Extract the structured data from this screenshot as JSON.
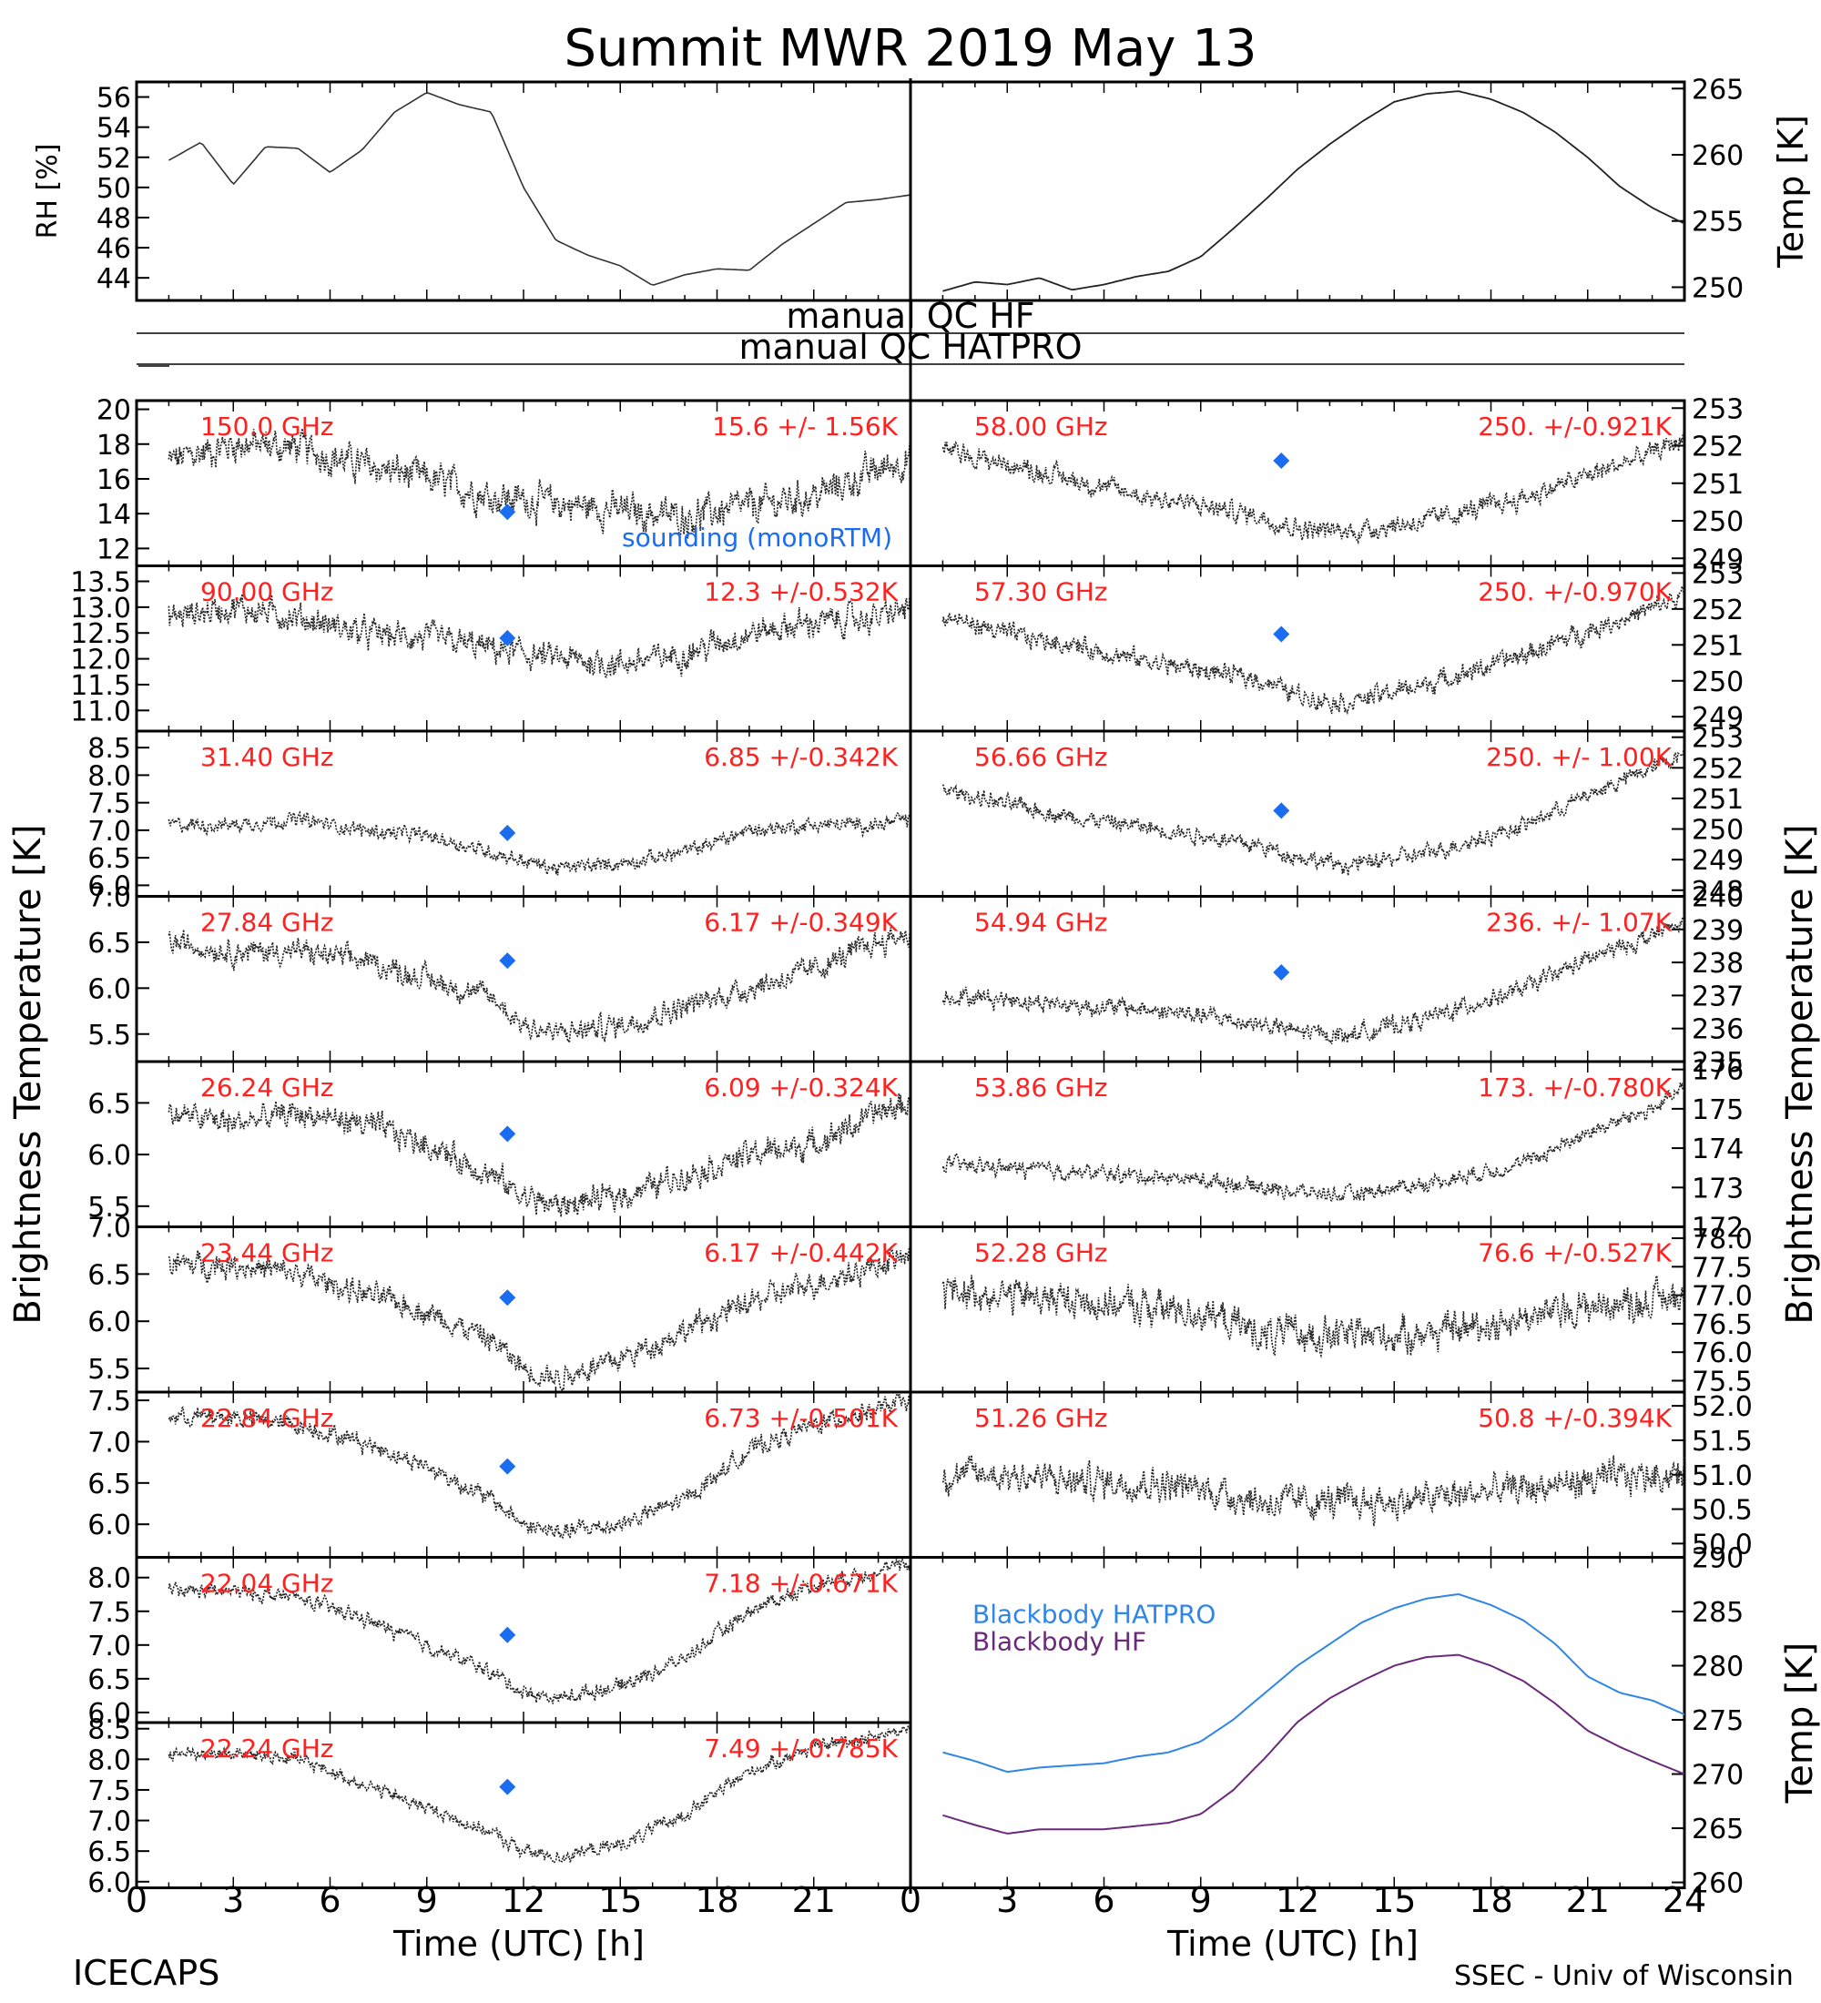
{
  "title": "Summit MWR 2019 May 13",
  "footer": {
    "left": "ICECAPS",
    "right": "SSEC - Univ of Wisconsin"
  },
  "x_axis": {
    "label": "Time (UTC) [h]",
    "ticks": [
      "0",
      "3",
      "6",
      "9",
      "12",
      "15",
      "18",
      "21",
      "24"
    ],
    "range": [
      0,
      24
    ]
  },
  "brightness_label": "Brightness Temperature [K]",
  "qc": {
    "line1": "manual QC HF",
    "line2": "manual QC HATPRO"
  },
  "sounding_label": "sounding (monoRTM)",
  "colors": {
    "sounding": "#1a6cf0",
    "red_text": "#ff2020",
    "hatpro": "#2f86e6",
    "hf": "#6a2a7a"
  },
  "chart_data": [
    {
      "id": "rh",
      "type": "line",
      "ylabel": "RH [%]",
      "ylim": [
        42.5,
        57
      ],
      "yticks": [
        "44",
        "46",
        "48",
        "50",
        "52",
        "54",
        "56"
      ],
      "x": [
        1,
        2,
        3,
        4,
        5,
        6,
        7,
        8,
        9,
        10,
        11,
        12,
        13,
        14,
        15,
        16,
        17,
        18,
        19,
        20,
        21,
        22,
        23,
        24
      ],
      "values": [
        51.8,
        53,
        50.2,
        52.7,
        52.6,
        51,
        52.5,
        55,
        56.3,
        55.5,
        55,
        50,
        46.5,
        45.5,
        44.8,
        43.5,
        44.2,
        44.6,
        44.5,
        46.2,
        47.6,
        49,
        49.2,
        49.5
      ]
    },
    {
      "id": "temp",
      "type": "line",
      "ylabel": "Temp [K]",
      "ylim": [
        249,
        265.5
      ],
      "yticks": [
        "250",
        "255",
        "260",
        "265"
      ],
      "x": [
        1,
        2,
        3,
        4,
        5,
        6,
        7,
        8,
        9,
        10,
        11,
        12,
        13,
        14,
        15,
        16,
        17,
        18,
        19,
        20,
        21,
        22,
        23,
        24
      ],
      "values": [
        249.7,
        250.4,
        250.2,
        250.7,
        249.8,
        250.2,
        250.8,
        251.2,
        252.3,
        254.4,
        256.6,
        258.9,
        260.8,
        262.5,
        264,
        264.6,
        264.8,
        264.2,
        263.2,
        261.7,
        259.8,
        257.6,
        256,
        254.8
      ]
    },
    {
      "id": "ch150",
      "side": "left",
      "label": "150.0 GHz",
      "stat": "15.6 +/- 1.56K",
      "ylim": [
        11,
        20.5
      ],
      "yticks": [
        "12",
        "14",
        "16",
        "18",
        "20"
      ],
      "sounding": {
        "x": 11.5,
        "y": 14.1
      },
      "x": [
        1,
        3,
        5,
        7,
        9,
        11,
        13,
        15,
        17,
        19,
        21,
        23,
        24
      ],
      "values": [
        17,
        18,
        17.8,
        16.8,
        16,
        15,
        14.6,
        14.2,
        13.8,
        14.4,
        15,
        16.5,
        17.2
      ],
      "noise": 0.9
    },
    {
      "id": "ch58",
      "side": "right",
      "label": "58.00 GHz",
      "stat": "250. +/-0.921K",
      "ylim": [
        248.8,
        253.2
      ],
      "yticks": [
        "249",
        "250",
        "251",
        "252",
        "253"
      ],
      "sounding": {
        "x": 11.5,
        "y": 251.6
      },
      "x": [
        1,
        3,
        5,
        7,
        9,
        11,
        12,
        13.5,
        16,
        19,
        21,
        23,
        24
      ],
      "values": [
        251.9,
        251.5,
        251.1,
        250.7,
        250.4,
        250.1,
        249.8,
        249.7,
        250,
        250.6,
        251.2,
        251.8,
        252.2
      ],
      "noise": 0.25
    },
    {
      "id": "ch90",
      "side": "left",
      "label": "90.00 GHz",
      "stat": "12.3 +/-0.532K",
      "ylim": [
        10.6,
        13.8
      ],
      "yticks": [
        "11.0",
        "11.5",
        "12.0",
        "12.5",
        "13.0",
        "13.5"
      ],
      "sounding": {
        "x": 11.5,
        "y": 12.4
      },
      "x": [
        1,
        3,
        5,
        7,
        9,
        11,
        13,
        15,
        17,
        19,
        21,
        23,
        24
      ],
      "values": [
        12.8,
        13,
        12.8,
        12.5,
        12.4,
        12.2,
        12,
        11.9,
        12.1,
        12.5,
        12.7,
        12.8,
        13
      ],
      "noise": 0.25
    },
    {
      "id": "ch57",
      "side": "right",
      "label": "57.30 GHz",
      "stat": "250. +/-0.970K",
      "ylim": [
        248.6,
        253.2
      ],
      "yticks": [
        "249",
        "250",
        "251",
        "252",
        "253"
      ],
      "sounding": {
        "x": 11.5,
        "y": 251.3
      },
      "x": [
        1,
        3,
        5,
        7,
        9,
        11,
        12,
        13.5,
        16,
        19,
        21,
        23,
        24
      ],
      "values": [
        251.8,
        251.3,
        251,
        250.6,
        250.3,
        250,
        249.6,
        249.4,
        249.9,
        250.7,
        251.4,
        252,
        252.4
      ],
      "noise": 0.25
    },
    {
      "id": "ch31",
      "side": "left",
      "label": "31.40 GHz",
      "stat": "6.85 +/-0.342K",
      "ylim": [
        5.8,
        8.8
      ],
      "yticks": [
        "6.0",
        "6.5",
        "7.0",
        "7.5",
        "8.0",
        "8.5"
      ],
      "sounding": {
        "x": 11.5,
        "y": 6.95
      },
      "x": [
        1,
        3,
        5,
        7,
        9,
        11,
        13,
        15,
        17,
        19,
        21,
        23,
        24
      ],
      "values": [
        7.1,
        7.1,
        7.2,
        7,
        6.9,
        6.6,
        6.3,
        6.4,
        6.6,
        7,
        7.1,
        7.1,
        7.2
      ],
      "noise": 0.12
    },
    {
      "id": "ch56",
      "side": "right",
      "label": "56.66 GHz",
      "stat": "250. +/- 1.00K",
      "ylim": [
        247.8,
        253.2
      ],
      "yticks": [
        "248",
        "249",
        "250",
        "251",
        "252",
        "253"
      ],
      "sounding": {
        "x": 11.5,
        "y": 250.6
      },
      "x": [
        1,
        3,
        5,
        7,
        9,
        11,
        12,
        13.5,
        16,
        19,
        21,
        23,
        24
      ],
      "values": [
        251.3,
        250.8,
        250.4,
        250.1,
        249.8,
        249.4,
        249.1,
        248.8,
        249.2,
        250.1,
        251.1,
        252,
        252.5
      ],
      "noise": 0.25
    },
    {
      "id": "ch27",
      "side": "left",
      "label": "27.84 GHz",
      "stat": "6.17 +/-0.349K",
      "ylim": [
        5.2,
        7.0
      ],
      "yticks": [
        "5.5",
        "6.0",
        "6.5",
        "7.0"
      ],
      "sounding": {
        "x": 11.5,
        "y": 6.3
      },
      "x": [
        1,
        3,
        5,
        7,
        9,
        11,
        12,
        13,
        15,
        17,
        19,
        21,
        23,
        24
      ],
      "values": [
        6.5,
        6.4,
        6.4,
        6.3,
        6.1,
        5.9,
        5.6,
        5.5,
        5.6,
        5.8,
        6,
        6.2,
        6.5,
        6.6
      ],
      "noise": 0.12
    },
    {
      "id": "ch54",
      "side": "right",
      "label": "54.94 GHz",
      "stat": "236. +/- 1.07K",
      "ylim": [
        235,
        240
      ],
      "yticks": [
        "235",
        "236",
        "237",
        "238",
        "239",
        "240"
      ],
      "sounding": {
        "x": 11.5,
        "y": 237.7
      },
      "x": [
        1,
        3,
        5,
        7,
        9,
        11,
        12,
        13.5,
        16,
        19,
        21,
        23,
        24
      ],
      "values": [
        237,
        236.9,
        236.7,
        236.6,
        236.4,
        236.1,
        235.9,
        235.8,
        236.3,
        237.2,
        238.1,
        238.8,
        239.2
      ],
      "noise": 0.25
    },
    {
      "id": "ch26",
      "side": "left",
      "label": "26.24 GHz",
      "stat": "6.09 +/-0.324K",
      "ylim": [
        5.3,
        6.9
      ],
      "yticks": [
        "5.5",
        "6.0",
        "6.5"
      ],
      "sounding": {
        "x": 11.5,
        "y": 6.2
      },
      "x": [
        1,
        3,
        5,
        7,
        9,
        11,
        12,
        13,
        15,
        17,
        19,
        21,
        23,
        24
      ],
      "values": [
        6.4,
        6.3,
        6.4,
        6.3,
        6.1,
        5.8,
        5.6,
        5.5,
        5.6,
        5.8,
        6,
        6.1,
        6.4,
        6.5
      ],
      "noise": 0.12
    },
    {
      "id": "ch53",
      "side": "right",
      "label": "53.86 GHz",
      "stat": "173. +/-0.780K",
      "ylim": [
        172,
        176.2
      ],
      "yticks": [
        "172",
        "173",
        "174",
        "175",
        "176"
      ],
      "sounding": null,
      "x": [
        1,
        3,
        5,
        7,
        9,
        11,
        12,
        13.5,
        16,
        19,
        21,
        23,
        24
      ],
      "values": [
        173.6,
        173.5,
        173.4,
        173.3,
        173.2,
        173,
        172.9,
        172.8,
        173.1,
        173.6,
        174.4,
        175,
        175.5
      ],
      "noise": 0.18
    },
    {
      "id": "ch23",
      "side": "left",
      "label": "23.44 GHz",
      "stat": "6.17 +/-0.442K",
      "ylim": [
        5.25,
        7.0
      ],
      "yticks": [
        "5.5",
        "6.0",
        "6.5",
        "7.0"
      ],
      "sounding": {
        "x": 11.5,
        "y": 6.25
      },
      "x": [
        1,
        3,
        5,
        7,
        9,
        11,
        12,
        13,
        15,
        17,
        19,
        21,
        23,
        24
      ],
      "values": [
        6.6,
        6.6,
        6.5,
        6.3,
        6.1,
        5.8,
        5.5,
        5.4,
        5.6,
        5.9,
        6.2,
        6.4,
        6.6,
        6.7
      ],
      "noise": 0.12
    },
    {
      "id": "ch52",
      "side": "right",
      "label": "52.28 GHz",
      "stat": "76.6 +/-0.527K",
      "ylim": [
        75.3,
        78.2
      ],
      "yticks": [
        "75.5",
        "76.0",
        "76.5",
        "77.0",
        "77.5",
        "78.0"
      ],
      "sounding": null,
      "x": [
        1,
        3,
        5,
        7,
        9,
        11,
        13,
        15,
        17,
        19,
        21,
        23,
        24
      ],
      "values": [
        77.1,
        77,
        76.9,
        76.8,
        76.7,
        76.3,
        76.3,
        76.3,
        76.4,
        76.6,
        76.8,
        76.9,
        77
      ],
      "noise": 0.28
    },
    {
      "id": "ch2284",
      "side": "left",
      "label": "22.84 GHz",
      "stat": "6.73 +/-0.501K",
      "ylim": [
        5.6,
        7.6
      ],
      "yticks": [
        "6.0",
        "6.5",
        "7.0",
        "7.5"
      ],
      "sounding": {
        "x": 11.5,
        "y": 6.7
      },
      "x": [
        1,
        3,
        5,
        7,
        9,
        11,
        12,
        13,
        15,
        17,
        19,
        21,
        23,
        24
      ],
      "values": [
        7.3,
        7.3,
        7.2,
        7,
        6.7,
        6.3,
        6,
        5.9,
        6,
        6.3,
        6.9,
        7.2,
        7.4,
        7.5
      ],
      "noise": 0.1
    },
    {
      "id": "ch51",
      "side": "right",
      "label": "51.26 GHz",
      "stat": "50.8 +/-0.394K",
      "ylim": [
        49.8,
        52.2
      ],
      "yticks": [
        "50.0",
        "50.5",
        "51.0",
        "51.5",
        "52.0"
      ],
      "sounding": null,
      "x": [
        1,
        3,
        5,
        7,
        9,
        11,
        13,
        15,
        17,
        19,
        21,
        23,
        24
      ],
      "values": [
        51,
        51,
        50.9,
        50.9,
        50.8,
        50.6,
        50.6,
        50.6,
        50.7,
        50.8,
        50.9,
        51,
        51
      ],
      "noise": 0.22
    },
    {
      "id": "ch2204",
      "side": "left",
      "label": "22.04 GHz",
      "stat": "7.18 +/-0.671K",
      "ylim": [
        5.85,
        8.3
      ],
      "yticks": [
        "6.0",
        "6.5",
        "7.0",
        "7.5",
        "8.0"
      ],
      "sounding": {
        "x": 11.5,
        "y": 7.15
      },
      "x": [
        1,
        3,
        5,
        7,
        9,
        11,
        12,
        13,
        15,
        17,
        19,
        21,
        23,
        24
      ],
      "values": [
        7.8,
        7.8,
        7.7,
        7.4,
        7,
        6.6,
        6.3,
        6.2,
        6.4,
        6.8,
        7.5,
        7.9,
        8.1,
        8.2
      ],
      "noise": 0.1
    },
    {
      "id": "bb",
      "side": "right",
      "type": "line",
      "ylabel": "Temp [K]",
      "ylim": [
        259.5,
        290
      ],
      "yticks": [
        "260",
        "265",
        "270",
        "275",
        "280",
        "285",
        "290"
      ],
      "legend": [
        "Blackbody HATPRO",
        "Blackbody HF"
      ],
      "x": [
        1,
        2,
        3,
        4,
        5,
        6,
        7,
        8,
        9,
        10,
        11,
        12,
        13,
        14,
        15,
        16,
        17,
        18,
        19,
        20,
        21,
        22,
        23,
        24
      ],
      "series": [
        {
          "name": "Blackbody HATPRO",
          "values": [
            272,
            271.2,
            270.2,
            270.6,
            270.8,
            271,
            271.6,
            272,
            273,
            275,
            277.5,
            280,
            282,
            284,
            285.3,
            286.2,
            286.6,
            285.6,
            284.2,
            282,
            279,
            277.5,
            276.8,
            275.5
          ]
        },
        {
          "name": "Blackbody HF",
          "values": [
            266.2,
            265.3,
            264.5,
            264.9,
            264.9,
            264.9,
            265.2,
            265.5,
            266.3,
            268.5,
            271.5,
            274.8,
            277,
            278.6,
            280,
            280.8,
            281,
            280,
            278.6,
            276.5,
            274,
            272.5,
            271.2,
            270
          ]
        }
      ]
    },
    {
      "id": "ch2224",
      "side": "left",
      "label": "22.24 GHz",
      "stat": "7.49 +/-0.785K",
      "ylim": [
        5.9,
        8.6
      ],
      "yticks": [
        "6.0",
        "6.5",
        "7.0",
        "7.5",
        "8.0",
        "8.5"
      ],
      "sounding": {
        "x": 11.5,
        "y": 7.55
      },
      "x": [
        1,
        3,
        5,
        7,
        9,
        11,
        12,
        13,
        15,
        17,
        19,
        21,
        23,
        24
      ],
      "values": [
        8.1,
        8.1,
        8,
        7.6,
        7.2,
        6.8,
        6.5,
        6.4,
        6.6,
        7.1,
        7.8,
        8.2,
        8.4,
        8.5
      ],
      "noise": 0.1
    }
  ]
}
